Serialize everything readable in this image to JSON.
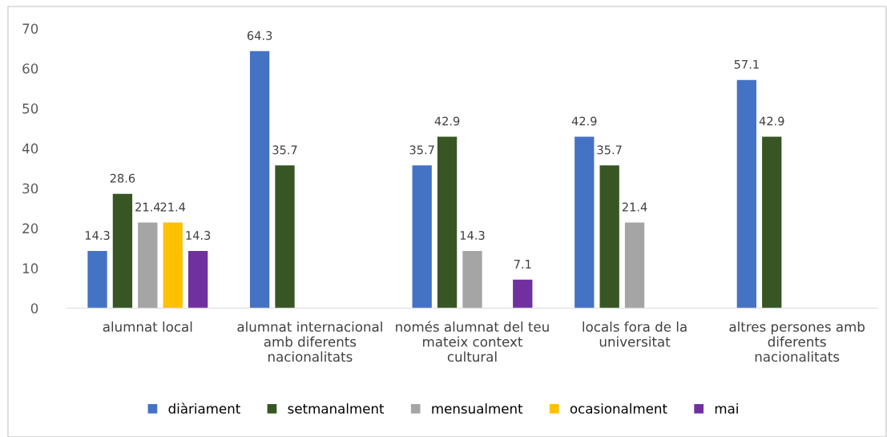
{
  "chart_data": {
    "type": "bar",
    "categories": [
      "alumnat local",
      "alumnat internacional amb diferents nacionalitats",
      "només alumnat del teu mateix context cultural",
      "locals fora de la universitat",
      "altres persones amb diferents nacionalitats"
    ],
    "series": [
      {
        "name": "diàriament",
        "color": "#4472c4",
        "values": [
          14.3,
          64.3,
          35.7,
          42.9,
          57.1
        ]
      },
      {
        "name": "setmanalment",
        "color": "#375623",
        "values": [
          28.6,
          35.7,
          42.9,
          35.7,
          42.9
        ]
      },
      {
        "name": "mensualment",
        "color": "#a5a5a5",
        "values": [
          21.4,
          null,
          14.3,
          21.4,
          null
        ]
      },
      {
        "name": "ocasionalment",
        "color": "#ffc000",
        "values": [
          21.4,
          null,
          null,
          null,
          null
        ]
      },
      {
        "name": "mai",
        "color": "#7030a0",
        "values": [
          14.3,
          null,
          7.1,
          null,
          null
        ]
      }
    ],
    "ylim": [
      0,
      70
    ],
    "yticks": [
      0,
      10,
      20,
      30,
      40,
      50,
      60,
      70
    ],
    "grid": false,
    "legend": "bottom",
    "data_labels": true
  }
}
